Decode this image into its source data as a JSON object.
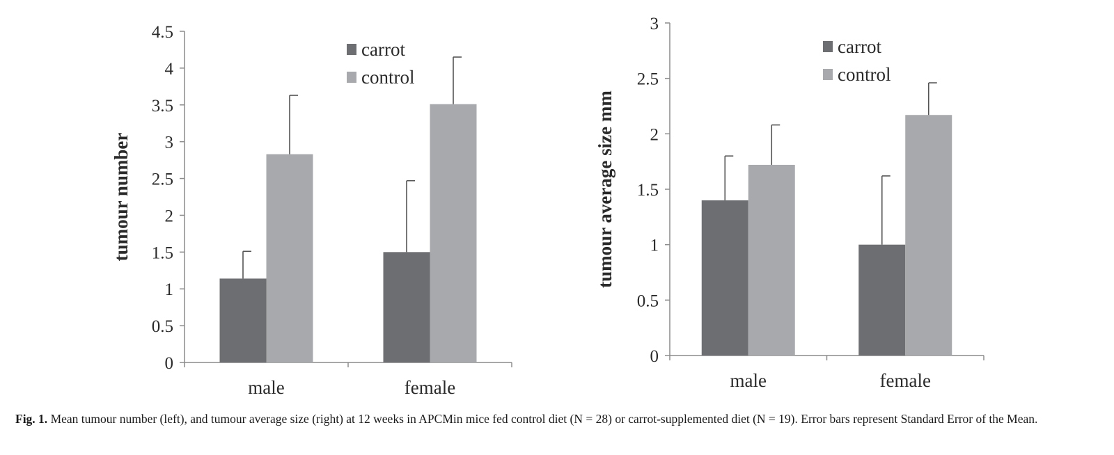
{
  "chart_data": [
    {
      "type": "bar",
      "categories": [
        "male",
        "female"
      ],
      "series": [
        {
          "name": "carrot",
          "values": [
            1.14,
            1.5
          ],
          "errors": [
            0.37,
            0.97
          ],
          "color": "#6d6e71"
        },
        {
          "name": "control",
          "values": [
            2.83,
            3.51
          ],
          "errors": [
            0.8,
            0.64
          ],
          "color": "#a7a9ac"
        }
      ],
      "ylabel": "tumour number",
      "ylim": [
        0,
        4.5
      ],
      "yticks": [
        "0",
        "0.5",
        "1",
        "1.5",
        "2",
        "2.5",
        "3",
        "3.5",
        "4",
        "4.5"
      ],
      "legend_position": "top-right",
      "grid": false
    },
    {
      "type": "bar",
      "categories": [
        "male",
        "female"
      ],
      "series": [
        {
          "name": "carrot",
          "values": [
            1.4,
            1.0
          ],
          "errors": [
            0.4,
            0.62
          ],
          "color": "#6d6e71"
        },
        {
          "name": "control",
          "values": [
            1.72,
            2.17
          ],
          "errors": [
            0.36,
            0.29
          ],
          "color": "#a7a9ac"
        }
      ],
      "ylabel": "tumour average size mm",
      "ylim": [
        0,
        3
      ],
      "yticks": [
        "0",
        "0.5",
        "1",
        "1.5",
        "2",
        "2.5",
        "3"
      ],
      "legend_position": "top-right",
      "grid": false
    }
  ],
  "caption": {
    "label": "Fig. 1.",
    "text": "Mean tumour number (left), and tumour average size (right) at 12 weeks in APCMin mice fed control diet (N = 28) or carrot-supplemented diet (N = 19). Error bars represent Standard Error of the Mean."
  }
}
